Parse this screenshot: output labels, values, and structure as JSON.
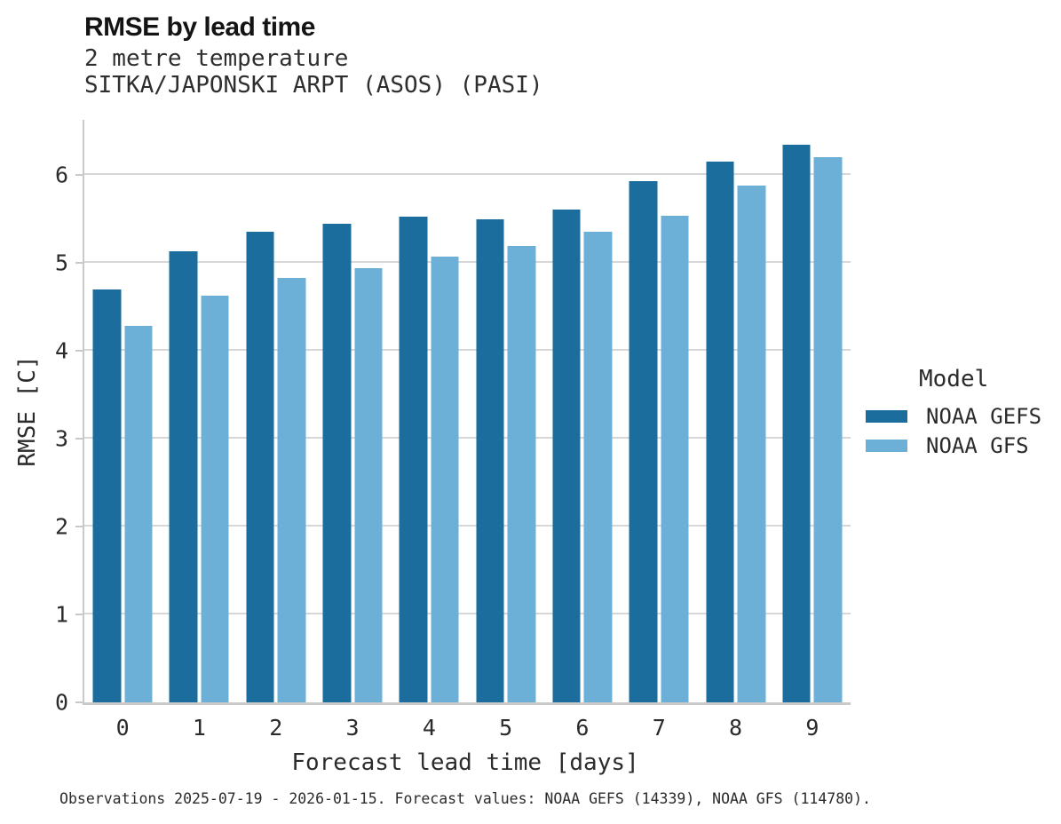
{
  "chart_data": {
    "type": "bar",
    "title": "RMSE by lead time",
    "subtitle1": "2 metre temperature",
    "subtitle2": "SITKA/JAPONSKI ARPT (ASOS) (PASI)",
    "xlabel": "Forecast lead time [days]",
    "ylabel": "RMSE [C]",
    "legend_title": "Model",
    "caption": "Observations 2025-07-19 - 2026-01-15. Forecast values: NOAA GEFS (14339), NOAA GFS (114780).",
    "categories": [
      0,
      1,
      2,
      3,
      4,
      5,
      6,
      7,
      8,
      9
    ],
    "series": [
      {
        "name": "NOAA GEFS",
        "color": "#1A6D9C",
        "values": [
          4.7,
          5.13,
          5.36,
          5.45,
          5.53,
          5.5,
          5.61,
          5.93,
          6.16,
          6.35
        ]
      },
      {
        "name": "NOAA GFS",
        "color": "#6CB0D8",
        "values": [
          4.29,
          4.63,
          4.83,
          4.94,
          5.07,
          5.19,
          5.36,
          5.54,
          5.88,
          6.21
        ]
      }
    ],
    "ylim": [
      0,
      6.63
    ],
    "yticks": [
      0,
      1,
      2,
      3,
      4,
      5,
      6
    ],
    "grid": "horizontal",
    "legend_position": "right"
  },
  "colors": {
    "gefs_dark_blue": "#1A6D9C",
    "gfs_light_blue": "#6CB0D8",
    "gridline_gray": "#d7d7d7",
    "axis_gray": "#c9c9c9",
    "text_dark": "#2b2b2b"
  }
}
